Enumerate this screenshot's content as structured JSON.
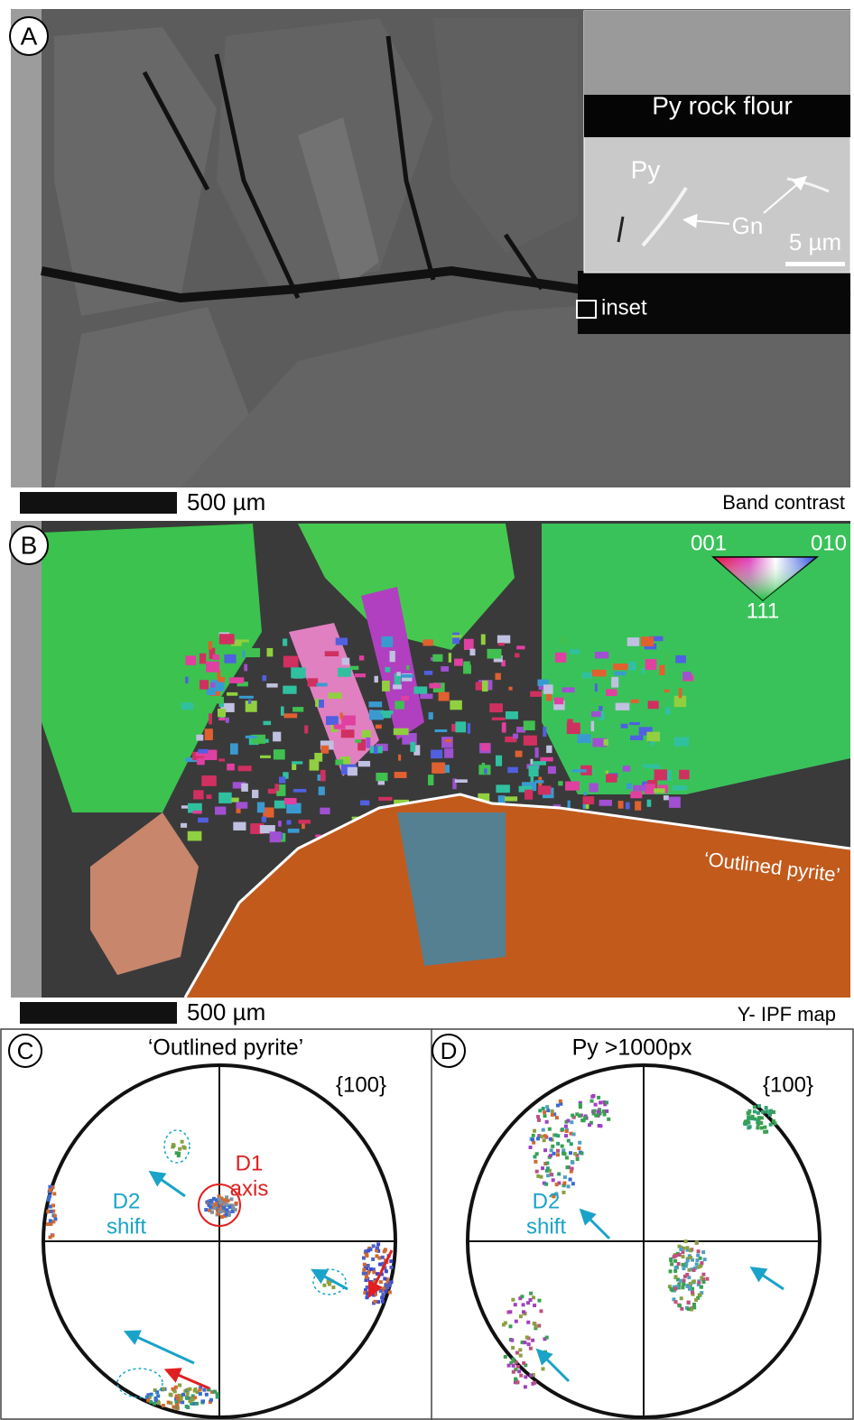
{
  "panel_a": {
    "label": "A",
    "inset": {
      "rock_flour": "Py rock flour",
      "py": "Py",
      "gn": "Gn",
      "scale": "5 µm"
    },
    "inset_marker": "inset",
    "scale_bar": "500 µm",
    "caption": "Band contrast"
  },
  "panel_b": {
    "label": "B",
    "ipf_key": {
      "corner_1": "001",
      "corner_2": "010",
      "corner_3": "111"
    },
    "annotation": "‘Outlined pyrite’",
    "scale_bar": "500 µm",
    "caption": "Y- IPF map"
  },
  "panel_c": {
    "label": "C",
    "title": "‘Outlined pyrite’",
    "plane": "{100}",
    "d1": [
      "D1",
      "axis"
    ],
    "d2": [
      "D2",
      "shift"
    ]
  },
  "panel_d": {
    "label": "D",
    "title": "Py >1000px",
    "plane": "{100}",
    "d2": [
      "D2",
      "shift"
    ]
  }
}
